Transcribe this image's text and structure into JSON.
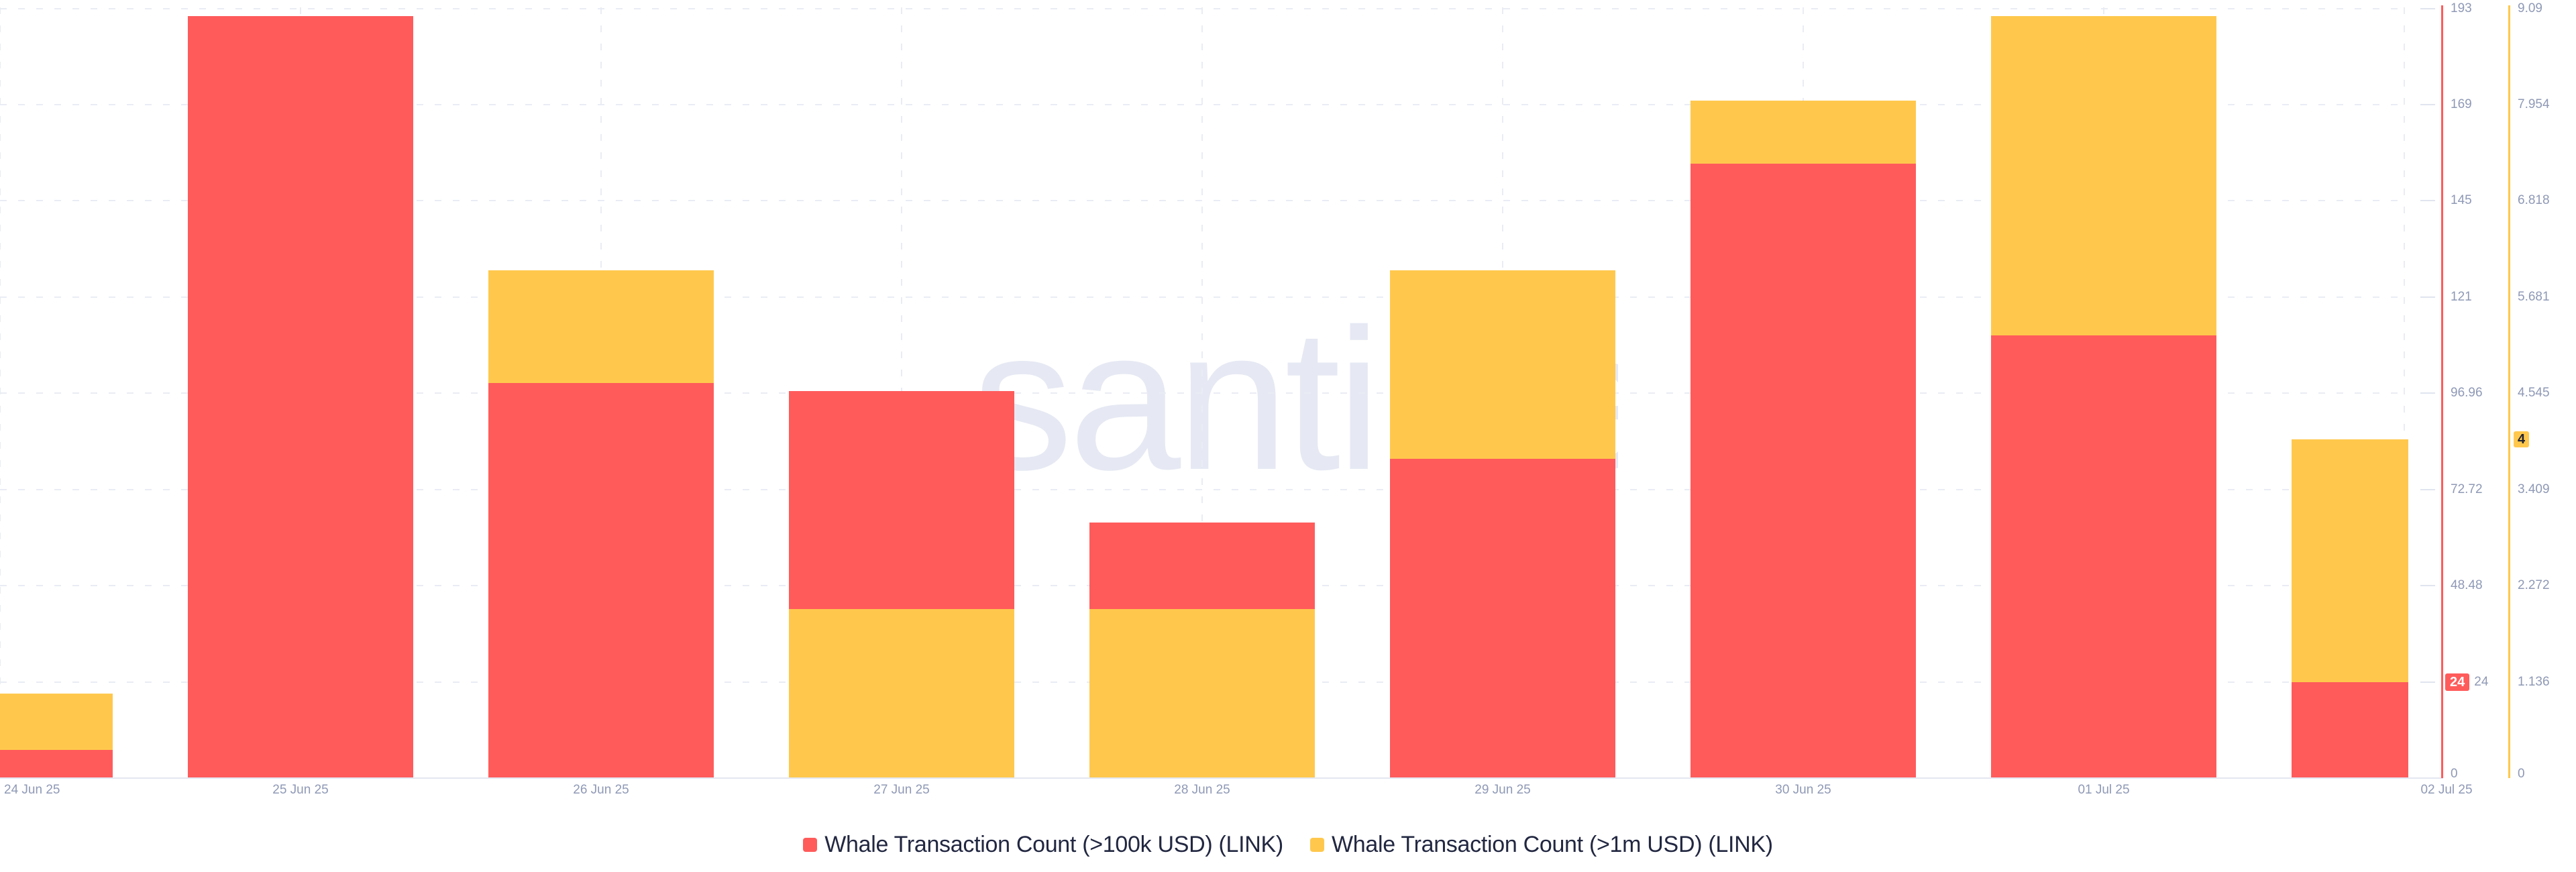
{
  "chart_data": {
    "type": "bar",
    "categories": [
      "24 Jun 25",
      "25 Jun 25",
      "26 Jun 25",
      "27 Jun 25",
      "28 Jun 25",
      "29 Jun 25",
      "30 Jun 25",
      "01 Jul 25",
      "02 Jul 25"
    ],
    "series": [
      {
        "name": "Whale Transaction Count (>100k USD) (LINK)",
        "color": "#ff5b5b",
        "y_axis": "right-red",
        "values": [
          7,
          191,
          99,
          97,
          64,
          80,
          154,
          111,
          24
        ]
      },
      {
        "name": "Whale Transaction Count (>1m USD) (LINK)",
        "color": "#ffc84d",
        "y_axis": "right-yellow",
        "values": [
          1,
          null,
          6,
          2,
          2,
          6,
          8,
          9,
          4
        ]
      }
    ],
    "red_axis": {
      "ticks": [
        "0",
        "24.24",
        "48.48",
        "72.72",
        "96.96",
        "121",
        "145",
        "169",
        "193"
      ],
      "range": [
        0,
        193
      ],
      "current_value_badge": "24",
      "badge_rest_label": "24"
    },
    "yellow_axis": {
      "ticks": [
        "0",
        "1.136",
        "2.272",
        "3.409",
        "4.545",
        "5.681",
        "6.818",
        "7.954",
        "9.09"
      ],
      "range": [
        0,
        9.09
      ],
      "current_value_badge": "4",
      "badge_value": 4
    },
    "x_axis_labels": [
      "24 Jun 25",
      "25 Jun 25",
      "26 Jun 25",
      "27 Jun 25",
      "28 Jun 25",
      "29 Jun 25",
      "30 Jun 25",
      "01 Jul 25",
      "02 Jul 25"
    ],
    "legend_position": "bottom",
    "grid": "dashed"
  },
  "legend": {
    "items": [
      {
        "label": "Whale Transaction Count (>100k USD) (LINK)",
        "color": "#ff5b5b"
      },
      {
        "label": "Whale Transaction Count (>1m USD) (LINK)",
        "color": "#ffc84d"
      }
    ]
  },
  "watermark": {
    "text": ".santiment"
  },
  "colors": {
    "red": "#ff5b5b",
    "yellow": "#ffc84d",
    "grid_dash": "#e9ecf4",
    "axis_line": "#e3e7f0",
    "tick_text": "#8f99b6",
    "legend_text": "#222741",
    "watermark": "#e6e9f3",
    "background": "#ffffff"
  }
}
